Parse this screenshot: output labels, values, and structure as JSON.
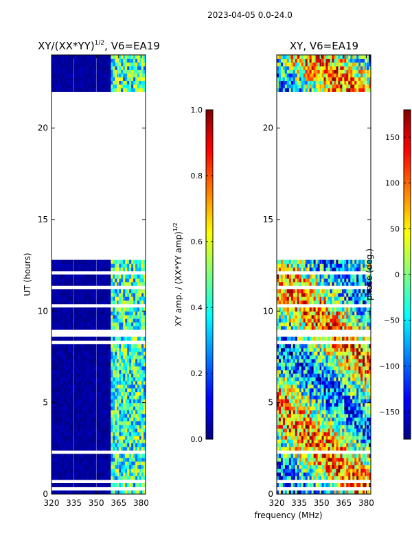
{
  "figure": {
    "suptitle": "2023-04-05 0.0-24.0",
    "shared_xlabel": "frequency (MHz)"
  },
  "chart_data": [
    {
      "type": "heatmap",
      "title": "XY/(XX*YY)^{1/2}, V6=EA19",
      "title_main": "XY/(XX*YY)",
      "title_sup": "1/2",
      "title_tail": ", V6=EA19",
      "xlabel": "frequency (MHz)",
      "ylabel": "UT (hours)",
      "xlim": [
        320,
        383
      ],
      "ylim": [
        0,
        24
      ],
      "xticks": [
        320,
        335,
        350,
        365,
        380
      ],
      "yticks": [
        0,
        5,
        10,
        15,
        20
      ],
      "colormap": "jet",
      "active_freq_range": [
        359,
        382
      ],
      "background_value": 0.0,
      "data_gaps_hours": [
        [
          12.8,
          21.9
        ],
        [
          0.2,
          0.35
        ],
        [
          0.6,
          0.8
        ],
        [
          2.3,
          2.45
        ],
        [
          8.3,
          8.5
        ],
        [
          8.7,
          8.95
        ],
        [
          10.2,
          10.3
        ],
        [
          11.2,
          11.4
        ],
        [
          12.0,
          12.1
        ],
        [
          22.5,
          22.6
        ],
        [
          23.1,
          23.25
        ]
      ],
      "colorbar": {
        "label_main": "XY amp. / (XX*YY amp)",
        "label_sup": "1/2",
        "range": [
          0.0,
          1.0
        ],
        "ticks": [
          "0.0",
          "0.2",
          "0.4",
          "0.6",
          "0.8",
          "1.0"
        ]
      }
    },
    {
      "type": "heatmap",
      "title": "XY, V6=EA19",
      "xlabel": "frequency (MHz)",
      "ylabel": "",
      "xlim": [
        320,
        383
      ],
      "ylim": [
        0,
        24
      ],
      "xticks": [
        320,
        335,
        350,
        365,
        380
      ],
      "yticks": [
        0,
        5,
        10,
        15,
        20
      ],
      "colormap": "jet",
      "data_gaps_hours": [
        [
          12.8,
          21.9
        ],
        [
          0.2,
          0.35
        ],
        [
          0.6,
          0.8
        ],
        [
          2.3,
          2.45
        ],
        [
          8.3,
          8.5
        ],
        [
          8.7,
          8.95
        ],
        [
          10.2,
          10.3
        ],
        [
          11.2,
          11.4
        ],
        [
          12.0,
          12.1
        ],
        [
          22.5,
          22.6
        ],
        [
          23.1,
          23.25
        ]
      ],
      "colorbar": {
        "label": "phase (deg.)",
        "range": [
          -180,
          180
        ],
        "ticks": [
          "150",
          "100",
          "50",
          "0",
          "−50",
          "−100",
          "−150"
        ],
        "tick_values": [
          150,
          100,
          50,
          0,
          -50,
          -100,
          -150
        ]
      }
    }
  ]
}
